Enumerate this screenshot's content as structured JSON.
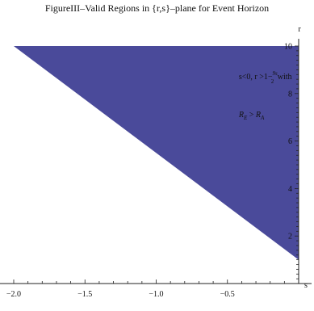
{
  "chart_data": {
    "type": "area",
    "title": "FigureIII–Valid Regions in {r,s}–plane for Event Horizon",
    "xlabel": "s",
    "ylabel": "r",
    "xlim": [
      -2.0,
      0.0
    ],
    "ylim": [
      0.0,
      10.0
    ],
    "x_ticks": [
      -2.0,
      -1.5,
      -1.0,
      -0.5
    ],
    "x_tick_labels": [
      "−2.0",
      "−1.5",
      "−1.0",
      "−0.5"
    ],
    "y_ticks": [
      2,
      4,
      6,
      8,
      10
    ],
    "y_tick_labels": [
      "2",
      "4",
      "6",
      "8",
      "10"
    ],
    "region": {
      "name": "valid-region",
      "color": "#4a4a9a",
      "boundary": "r = 1 - 9s/2",
      "polygon": [
        {
          "x": -2.0,
          "y": 10.0
        },
        {
          "x": 0.0,
          "y": 10.0
        },
        {
          "x": 0.0,
          "y": 1.0
        }
      ]
    },
    "annotations": [
      {
        "key": "condition",
        "text_parts": [
          "s<0, r >1−",
          "9s",
          "2",
          " with"
        ],
        "at": {
          "x": -0.42,
          "y": 8.6
        }
      },
      {
        "key": "inequality",
        "text": "R_E > R_A",
        "at": {
          "x": -0.42,
          "y": 7.0
        }
      }
    ],
    "grid": false,
    "legend": "none"
  }
}
